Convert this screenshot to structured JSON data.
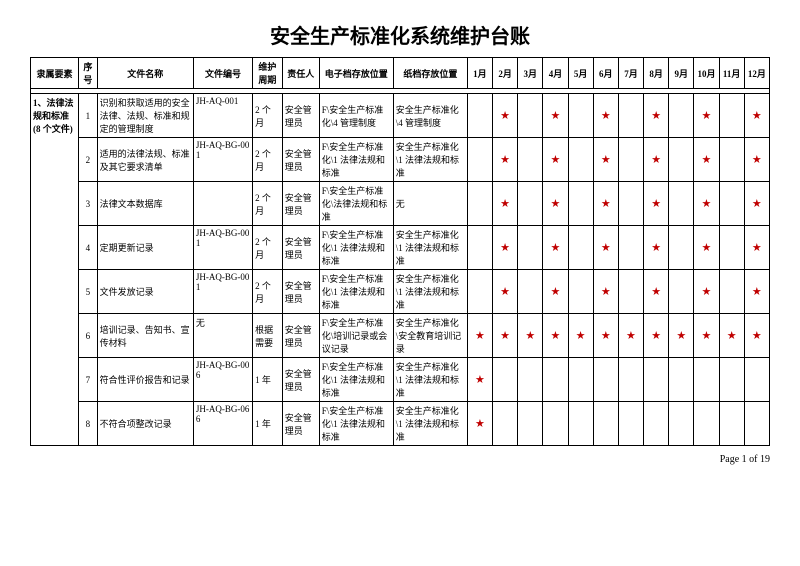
{
  "title": "安全生产标准化系统维护台账",
  "footer": "Page 1 of 19",
  "star": "★",
  "headers": {
    "category": "隶属要素",
    "num": "序号",
    "name": "文件名称",
    "code": "文件编号",
    "cycle": "维护周期",
    "resp": "责任人",
    "eloc": "电子档存放位置",
    "ploc": "纸档存放位置",
    "months": [
      "1月",
      "2月",
      "3月",
      "4月",
      "5月",
      "6月",
      "7月",
      "8月",
      "9月",
      "10月",
      "11月",
      "12月"
    ]
  },
  "category_label": "1、法律法规和标准(8 个文件)",
  "rows": [
    {
      "num": "1",
      "name": "识别和获取适用的安全法律、法规、标准和规定的管理制度",
      "code": "JH-AQ-001",
      "cycle": "2 个月",
      "resp": "安全管理员",
      "eloc": "F\\安全生产标准化\\4 管理制度",
      "ploc": "安全生产标准化\\4 管理制度",
      "stars": [
        0,
        1,
        0,
        1,
        0,
        1,
        0,
        1,
        0,
        1,
        0,
        1
      ]
    },
    {
      "num": "2",
      "name": "适用的法律法规、标准及其它要求清单",
      "code": "JH-AQ-BG-001",
      "cycle": "2 个月",
      "resp": "安全管理员",
      "eloc": "F\\安全生产标准化\\1 法律法规和标准",
      "ploc": "安全生产标准化\\1 法律法规和标准",
      "stars": [
        0,
        1,
        0,
        1,
        0,
        1,
        0,
        1,
        0,
        1,
        0,
        1
      ]
    },
    {
      "num": "3",
      "name": "法律文本数据库",
      "code": "",
      "cycle": "2 个月",
      "resp": "安全管理员",
      "eloc": "F\\安全生产标准化\\法律法规和标准",
      "ploc": "无",
      "stars": [
        0,
        1,
        0,
        1,
        0,
        1,
        0,
        1,
        0,
        1,
        0,
        1
      ]
    },
    {
      "num": "4",
      "name": "定期更新记录",
      "code": "JH-AQ-BG-001",
      "cycle": "2 个月",
      "resp": "安全管理员",
      "eloc": "F\\安全生产标准化\\1 法律法规和标准",
      "ploc": "安全生产标准化\\1 法律法规和标准",
      "stars": [
        0,
        1,
        0,
        1,
        0,
        1,
        0,
        1,
        0,
        1,
        0,
        1
      ]
    },
    {
      "num": "5",
      "name": "文件发放记录",
      "code": "JH-AQ-BG-001",
      "cycle": "2 个月",
      "resp": "安全管理员",
      "eloc": "F\\安全生产标准化\\1 法律法规和标准",
      "ploc": "安全生产标准化\\1 法律法规和标准",
      "stars": [
        0,
        1,
        0,
        1,
        0,
        1,
        0,
        1,
        0,
        1,
        0,
        1
      ]
    },
    {
      "num": "6",
      "name": "培训记录、告知书、宣传材料",
      "code": "无",
      "cycle": "根据需要",
      "resp": "安全管理员",
      "eloc": "F\\安全生产标准化\\培训记录或会议记录",
      "ploc": "安全生产标准化\\安全教育培训记录",
      "stars": [
        1,
        1,
        1,
        1,
        1,
        1,
        1,
        1,
        1,
        1,
        1,
        1
      ]
    },
    {
      "num": "7",
      "name": "符合性评价报告和记录",
      "code": "JH-AQ-BG-006",
      "cycle": "1 年",
      "resp": "安全管理员",
      "eloc": "F\\安全生产标准化\\1 法律法规和标准",
      "ploc": "安全生产标准化\\1 法律法规和标准",
      "stars": [
        1,
        0,
        0,
        0,
        0,
        0,
        0,
        0,
        0,
        0,
        0,
        0
      ]
    },
    {
      "num": "8",
      "name": "不符合项整改记录",
      "code": "JH-AQ-BG-066",
      "cycle": "1 年",
      "resp": "安全管理员",
      "eloc": "F\\安全生产标准化\\1 法律法规和标准",
      "ploc": "安全生产标准化\\1 法律法规和标准",
      "stars": [
        1,
        0,
        0,
        0,
        0,
        0,
        0,
        0,
        0,
        0,
        0,
        0
      ]
    }
  ]
}
